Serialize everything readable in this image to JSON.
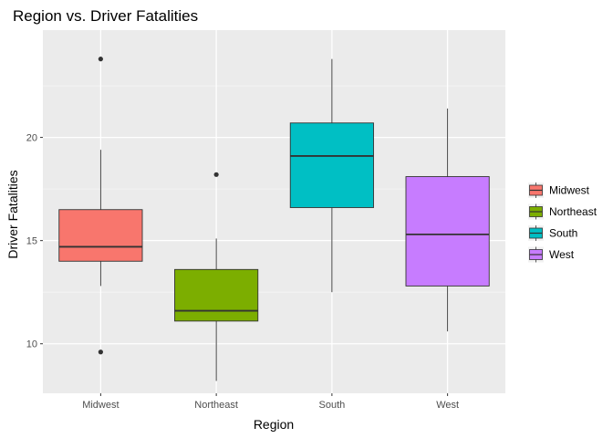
{
  "chart_data": {
    "type": "boxplot",
    "title": "Region vs. Driver Fatalities",
    "xlabel": "Region",
    "ylabel": "Driver Fatalities",
    "ylim": [
      7.6,
      25.2
    ],
    "yticks": [
      10,
      15,
      20
    ],
    "grid": true,
    "legend": "right",
    "categories": [
      "Midwest",
      "Northeast",
      "South",
      "West"
    ],
    "boxes": [
      {
        "name": "Midwest",
        "color": "#f8766d",
        "whisker_low": 12.8,
        "q1": 14.0,
        "median": 14.7,
        "q3": 16.5,
        "whisker_high": 19.4,
        "outliers": [
          23.8,
          9.6
        ]
      },
      {
        "name": "Northeast",
        "color": "#7cae00",
        "whisker_low": 8.2,
        "q1": 11.1,
        "median": 11.6,
        "q3": 13.6,
        "whisker_high": 15.1,
        "outliers": [
          18.2
        ]
      },
      {
        "name": "South",
        "color": "#00bfc4",
        "whisker_low": 12.5,
        "q1": 16.6,
        "median": 19.1,
        "q3": 20.7,
        "whisker_high": 23.8,
        "outliers": []
      },
      {
        "name": "West",
        "color": "#c77cff",
        "whisker_low": 10.6,
        "q1": 12.8,
        "median": 15.3,
        "q3": 18.1,
        "whisker_high": 21.4,
        "outliers": []
      }
    ]
  }
}
